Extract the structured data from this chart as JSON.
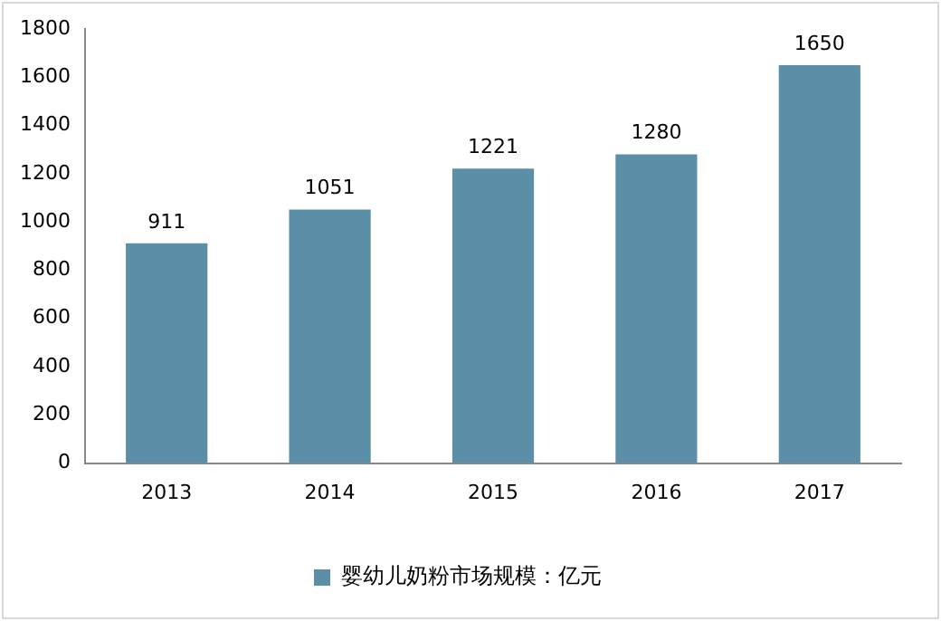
{
  "chart_data": {
    "type": "bar",
    "categories": [
      "2013",
      "2014",
      "2015",
      "2016",
      "2017"
    ],
    "series": [
      {
        "name": "婴幼儿奶粉市场规模：亿元",
        "color": "#5b8fa8",
        "values": [
          911,
          1051,
          1221,
          1280,
          1650
        ]
      }
    ],
    "ylim": [
      0,
      1800
    ],
    "yticks": [
      0,
      200,
      400,
      600,
      800,
      1000,
      1200,
      1400,
      1600,
      1800
    ],
    "grid": false,
    "legend": "bottom",
    "data_labels": true
  }
}
